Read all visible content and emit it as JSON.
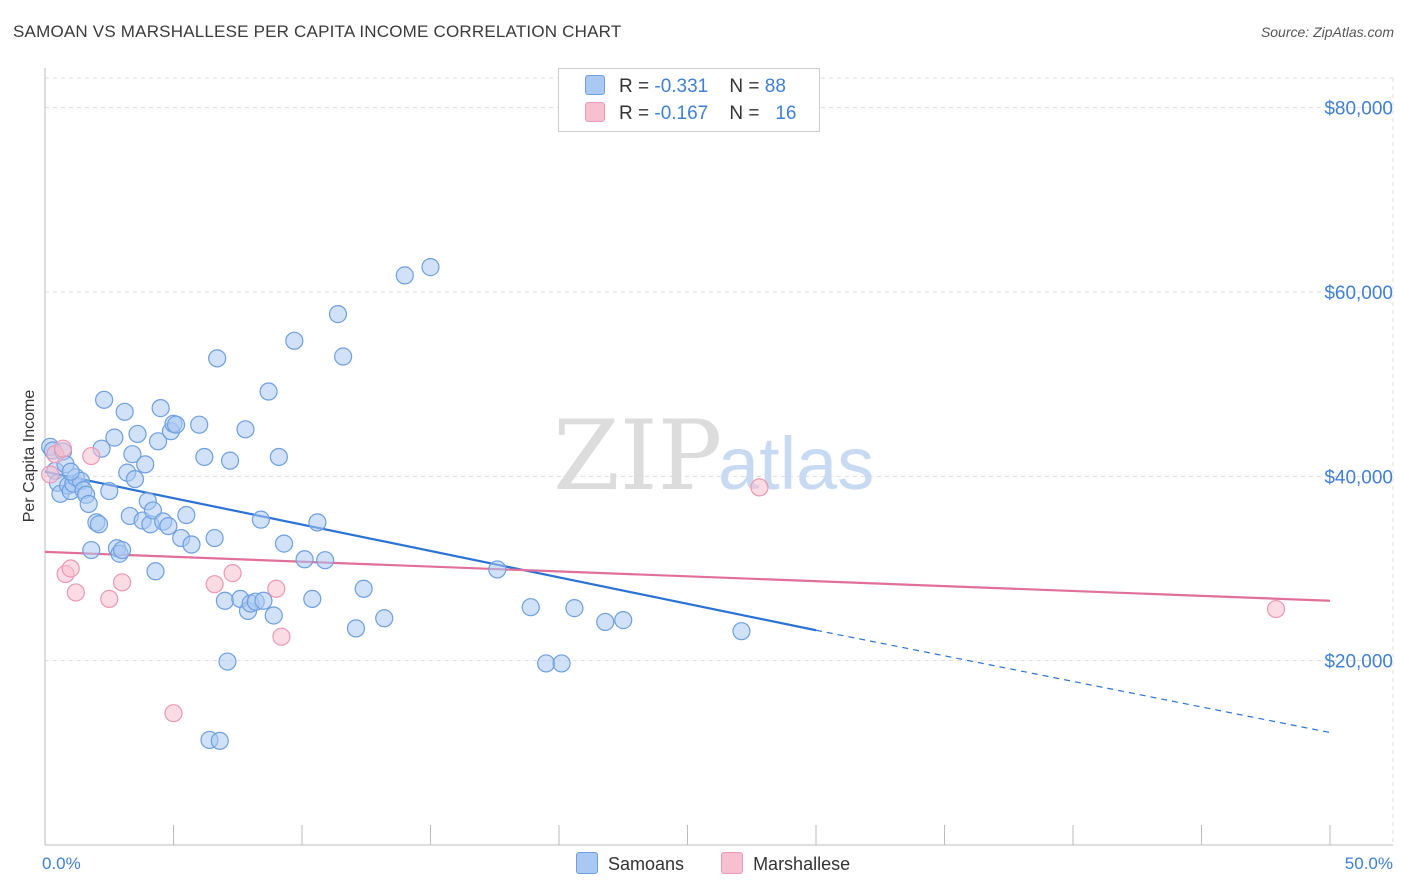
{
  "header": {
    "title": "SAMOAN VS MARSHALLESE PER CAPITA INCOME CORRELATION CHART",
    "source": "Source: ZipAtlas.com"
  },
  "watermark": {
    "zip": "ZIP",
    "atlas": "atlas"
  },
  "colors": {
    "samoans_fill": "#a9c8f2",
    "samoans_stroke": "#6e9fdf",
    "samoans_line": "#2a72d4",
    "marshallese_fill": "#f7c0d0",
    "marshallese_stroke": "#eb98b3",
    "marshallese_line": "#e0709a",
    "tick_label": "#3f7fd4",
    "grid": "#dddddd"
  },
  "legend": {
    "rows": [
      {
        "r_label": "R = ",
        "r_value": "-0.331",
        "n_label": "N = ",
        "n_value": "88"
      },
      {
        "r_label": "R = ",
        "r_value": "-0.167",
        "n_label": "N = ",
        "n_value": "16"
      }
    ]
  },
  "bottom_legend": {
    "series1": "Samoans",
    "series2": "Marshallese"
  },
  "chart_data": {
    "type": "scatter",
    "title": "SAMOAN VS MARSHALLESE PER CAPITA INCOME CORRELATION CHART",
    "xlabel": "",
    "ylabel": "Per Capita Income",
    "xlim": [
      0,
      50
    ],
    "ylim": [
      0,
      83000
    ],
    "x_tick_labels": [
      "0.0%",
      "50.0%"
    ],
    "y_ticks": [
      20000,
      40000,
      60000,
      80000
    ],
    "y_tick_labels": [
      "$20,000",
      "$40,000",
      "$60,000",
      "$80,000"
    ],
    "series": [
      {
        "name": "Samoans",
        "R": -0.331,
        "N": 88,
        "trend": {
          "x0": 0,
          "y0": 40500,
          "x1": 30,
          "y1": 23300,
          "dashed_to_x": 50,
          "dashed_to_y": 12200
        },
        "points": [
          [
            0.2,
            43200
          ],
          [
            0.3,
            42800
          ],
          [
            0.4,
            40600
          ],
          [
            0.5,
            39300
          ],
          [
            0.6,
            38100
          ],
          [
            0.7,
            42700
          ],
          [
            0.8,
            41300
          ],
          [
            0.9,
            39000
          ],
          [
            1.0,
            38400
          ],
          [
            1.1,
            39200
          ],
          [
            1.2,
            39900
          ],
          [
            1.4,
            39500
          ],
          [
            1.5,
            38500
          ],
          [
            1.6,
            38000
          ],
          [
            1.7,
            37000
          ],
          [
            1.8,
            32000
          ],
          [
            2.0,
            35000
          ],
          [
            2.1,
            34800
          ],
          [
            2.2,
            43000
          ],
          [
            2.3,
            48300
          ],
          [
            2.5,
            38400
          ],
          [
            2.7,
            44200
          ],
          [
            2.8,
            32200
          ],
          [
            2.9,
            31600
          ],
          [
            3.0,
            32000
          ],
          [
            3.1,
            47000
          ],
          [
            3.2,
            40400
          ],
          [
            3.3,
            35700
          ],
          [
            3.4,
            42400
          ],
          [
            3.5,
            39700
          ],
          [
            3.6,
            44600
          ],
          [
            3.8,
            35200
          ],
          [
            3.9,
            41300
          ],
          [
            4.0,
            37300
          ],
          [
            4.1,
            34800
          ],
          [
            4.2,
            36300
          ],
          [
            4.3,
            29700
          ],
          [
            4.4,
            43800
          ],
          [
            4.5,
            47400
          ],
          [
            4.6,
            35100
          ],
          [
            4.8,
            34600
          ],
          [
            4.9,
            44900
          ],
          [
            5.0,
            45700
          ],
          [
            5.1,
            45600
          ],
          [
            5.3,
            33300
          ],
          [
            5.5,
            35800
          ],
          [
            5.7,
            32600
          ],
          [
            6.0,
            45600
          ],
          [
            6.2,
            42100
          ],
          [
            6.4,
            11400
          ],
          [
            6.6,
            33300
          ],
          [
            6.7,
            52800
          ],
          [
            6.8,
            11300
          ],
          [
            7.0,
            26500
          ],
          [
            7.1,
            19900
          ],
          [
            7.2,
            41700
          ],
          [
            7.6,
            26700
          ],
          [
            7.8,
            45100
          ],
          [
            7.9,
            25400
          ],
          [
            8.0,
            26200
          ],
          [
            8.2,
            26400
          ],
          [
            8.4,
            35300
          ],
          [
            8.5,
            26500
          ],
          [
            8.7,
            49200
          ],
          [
            8.9,
            24900
          ],
          [
            9.1,
            42100
          ],
          [
            9.3,
            32700
          ],
          [
            9.7,
            54700
          ],
          [
            10.1,
            31000
          ],
          [
            10.4,
            26700
          ],
          [
            10.6,
            35000
          ],
          [
            10.9,
            30900
          ],
          [
            11.4,
            57600
          ],
          [
            11.6,
            53000
          ],
          [
            12.1,
            23500
          ],
          [
            12.4,
            27800
          ],
          [
            13.2,
            24600
          ],
          [
            14.0,
            61800
          ],
          [
            15.0,
            62700
          ],
          [
            17.6,
            29900
          ],
          [
            18.9,
            25800
          ],
          [
            19.5,
            19700
          ],
          [
            20.1,
            19700
          ],
          [
            20.6,
            25700
          ],
          [
            21.8,
            24200
          ],
          [
            22.5,
            24400
          ],
          [
            27.1,
            23200
          ],
          [
            1.0,
            40500
          ]
        ]
      },
      {
        "name": "Marshallese",
        "R": -0.167,
        "N": 16,
        "trend": {
          "x0": 0,
          "y0": 31800,
          "x1": 50,
          "y1": 26500
        },
        "points": [
          [
            0.2,
            40200
          ],
          [
            0.4,
            42400
          ],
          [
            0.7,
            43000
          ],
          [
            0.8,
            29400
          ],
          [
            1.0,
            30000
          ],
          [
            1.2,
            27400
          ],
          [
            1.8,
            42200
          ],
          [
            2.5,
            26700
          ],
          [
            3.0,
            28500
          ],
          [
            5.0,
            14300
          ],
          [
            6.6,
            28300
          ],
          [
            7.3,
            29500
          ],
          [
            9.0,
            27800
          ],
          [
            9.2,
            22600
          ],
          [
            27.8,
            38800
          ],
          [
            47.9,
            25600
          ]
        ]
      }
    ]
  }
}
